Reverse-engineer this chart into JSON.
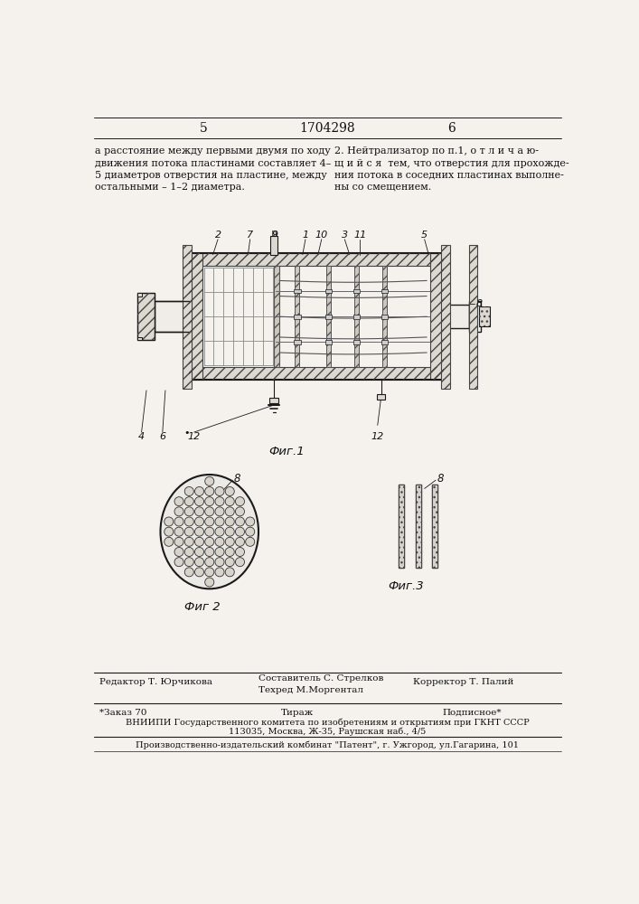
{
  "page_width": 7.07,
  "page_height": 10.0,
  "bg_color": "#f5f2ee",
  "header_page_left": "5",
  "header_patent": "1704298",
  "header_page_right": "6",
  "text_left": "а расстояние между первыми двумя по ходу\nдвижения потока пластинами составляет 4–\n5 диаметров отверстия на пластине, между\nостальными – 1–2 диаметра.",
  "text_right": "2. Нейтрализатор по п.1, о т л и ч а ю-\nщ и й с я  тем, что отверстия для прохожде-\nния потока в соседних пластинах выполне-\nны со смещением.",
  "fig1_caption": "Фиг.1",
  "fig2_caption": "Фиг 2",
  "fig3_caption": "Фиг.3",
  "footer_line1_col1": "Редактор Т. Юрчикова",
  "footer_line1_col2": "Составитель С. Стрелков\nТехред М.Моргентал",
  "footer_line1_col3": "Корректор Т. Палий",
  "footer_line2_col1": "*Заказ 70",
  "footer_line2_col2": "Тираж",
  "footer_line2_col3": "Подписное*",
  "footer_line3": "ВНИИПИ Государственного комитета по изобретениям и открытиям при ГКНТ СССР",
  "footer_line4": "113035, Москва, Ж-35, Раушская наб., 4/5",
  "footer_line5": "Производственно-издательский комбинат \"Патент\", г. Ужгород, ул.Гагарина, 101",
  "line_color": "#1a1a1a",
  "text_color": "#111111"
}
